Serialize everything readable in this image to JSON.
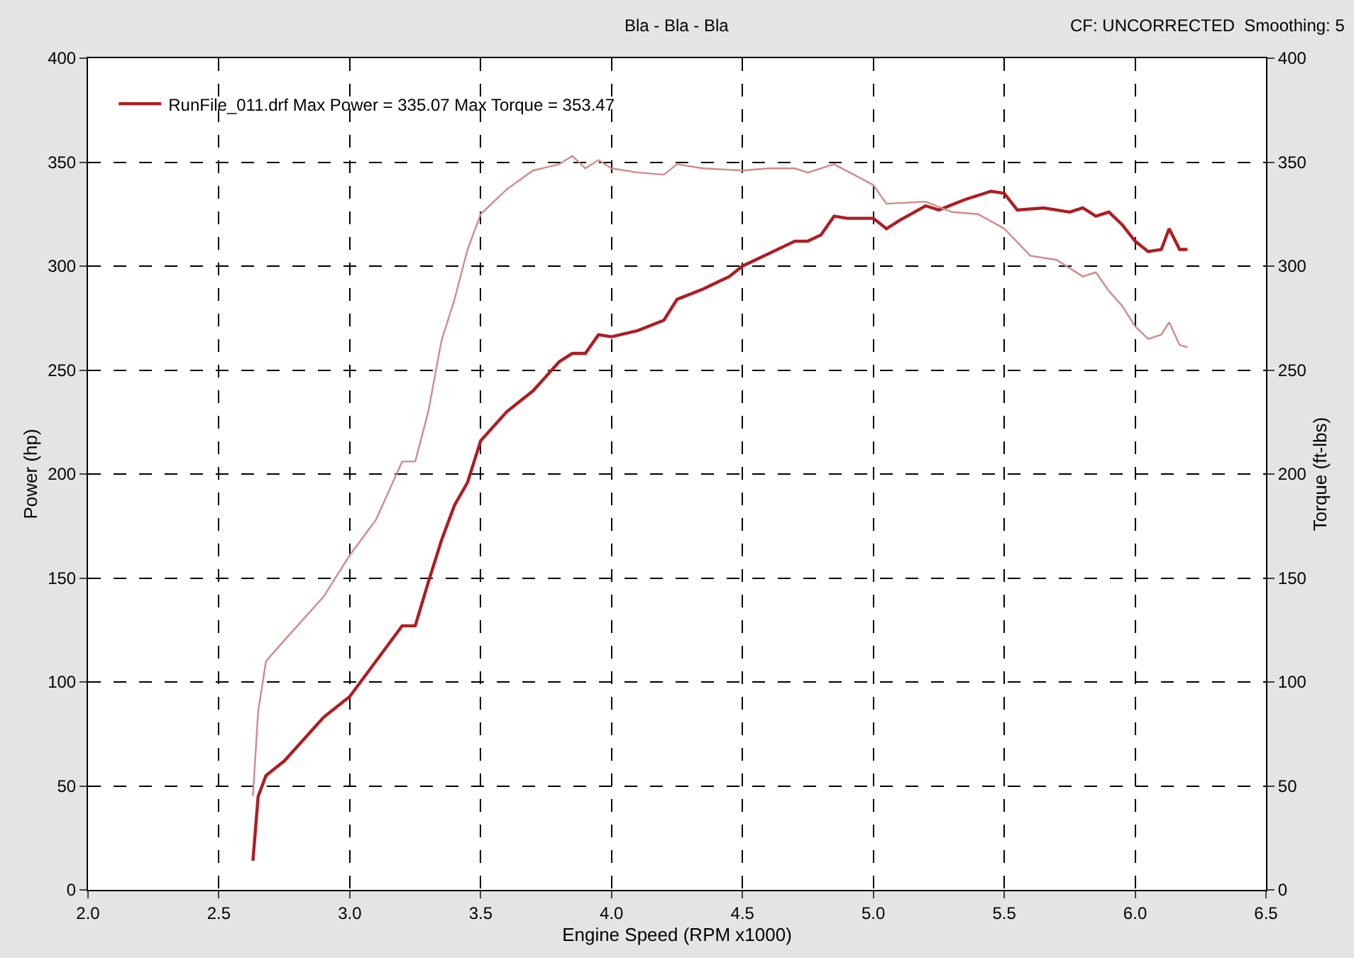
{
  "chart_data": {
    "type": "line",
    "subtitle": "Bla - Bla - Bla",
    "xlabel": "Engine Speed (RPM x1000)",
    "ylabel": "Power (hp)",
    "y2label": "Torque (ft-lbs)",
    "annotations": [
      "CF: UNCORRECTED  Smoothing: 5"
    ],
    "xlim": [
      2.0,
      6.5
    ],
    "xticks": [
      {
        "value": 2,
        "label": "2.0"
      },
      {
        "value": 2.5,
        "label": "2.5"
      },
      {
        "value": 3,
        "label": "3.0"
      },
      {
        "value": 3.5,
        "label": "3.5"
      },
      {
        "value": 4,
        "label": "4.0"
      },
      {
        "value": 4.5,
        "label": "4.5"
      },
      {
        "value": 5,
        "label": "5.0"
      },
      {
        "value": 5.5,
        "label": "5.5"
      },
      {
        "value": 6,
        "label": "6.0"
      },
      {
        "value": 6.5,
        "label": "6.5"
      }
    ],
    "ylim": [
      0,
      400
    ],
    "yticks": [
      0,
      50,
      100,
      150,
      200,
      250,
      300,
      350,
      400
    ],
    "y2lim": [
      0,
      400
    ],
    "y2ticks": [
      0,
      50,
      100,
      150,
      200,
      250,
      300,
      350,
      400
    ],
    "grid": true,
    "legend": "top left",
    "marker": "none",
    "series": [
      {
        "name": "RunFile_011.drf Max Power = 335.07 Max Torque = 353.47",
        "color": "#b01c22",
        "x": [
          2.63,
          2.65,
          2.68,
          2.75,
          2.9,
          3.0,
          3.1,
          3.2,
          3.25,
          3.3,
          3.35,
          3.4,
          3.45,
          3.5,
          3.6,
          3.7,
          3.8,
          3.85,
          3.9,
          3.95,
          4.0,
          4.1,
          4.2,
          4.25,
          4.35,
          4.45,
          4.5,
          4.6,
          4.7,
          4.75,
          4.8,
          4.85,
          4.9,
          5.0,
          5.05,
          5.1,
          5.2,
          5.25,
          5.35,
          5.45,
          5.5,
          5.55,
          5.65,
          5.75,
          5.8,
          5.85,
          5.9,
          5.95,
          6.0,
          6.05,
          6.1,
          6.13,
          6.17,
          6.2
        ],
        "values": [
          14,
          45,
          55,
          62,
          83,
          93,
          110,
          127,
          127,
          148,
          168,
          185,
          196,
          216,
          230,
          240,
          254,
          258,
          258,
          267,
          266,
          269,
          274,
          284,
          289,
          295,
          300,
          306,
          312,
          312,
          315,
          324,
          323,
          323,
          318,
          322,
          329,
          327,
          332,
          336,
          335,
          327,
          328,
          326,
          328,
          324,
          326,
          320,
          312,
          307,
          308,
          318,
          308,
          308
        ]
      },
      {
        "color": "#d08a8a",
        "axis": "y2",
        "x": [
          2.63,
          2.65,
          2.68,
          2.75,
          2.9,
          3.0,
          3.1,
          3.2,
          3.25,
          3.3,
          3.35,
          3.4,
          3.45,
          3.5,
          3.6,
          3.7,
          3.8,
          3.85,
          3.9,
          3.95,
          4.0,
          4.1,
          4.2,
          4.25,
          4.35,
          4.5,
          4.6,
          4.7,
          4.75,
          4.85,
          5.0,
          5.05,
          5.2,
          5.3,
          5.4,
          5.5,
          5.6,
          5.7,
          5.8,
          5.85,
          5.9,
          5.95,
          6.0,
          6.05,
          6.1,
          6.13,
          6.17,
          6.2
        ],
        "values": [
          45,
          86,
          110,
          120,
          141,
          161,
          178,
          206,
          206,
          230,
          264,
          284,
          308,
          325,
          337,
          346,
          349,
          353,
          347,
          351,
          347,
          345,
          344,
          349,
          347,
          346,
          347,
          347,
          345,
          349,
          339,
          330,
          331,
          326,
          325,
          318,
          305,
          303,
          295,
          297,
          288,
          281,
          271,
          265,
          267,
          273,
          262,
          261
        ]
      }
    ]
  }
}
